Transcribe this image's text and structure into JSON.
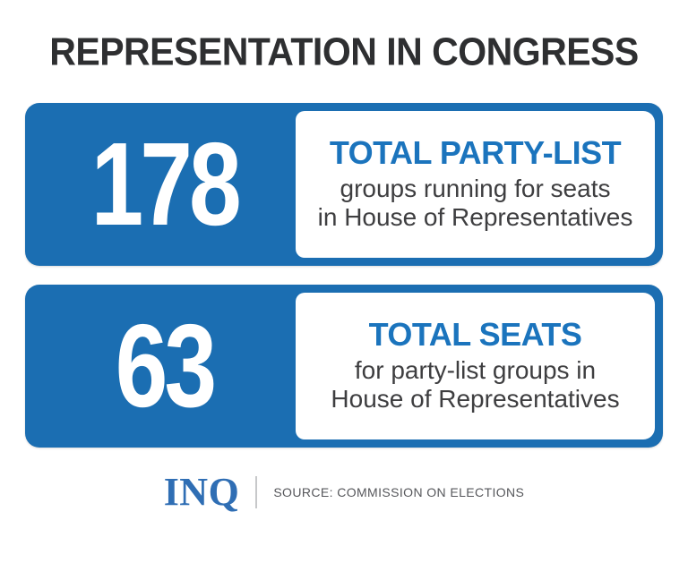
{
  "page": {
    "title": "REPRESENTATION IN CONGRESS"
  },
  "colors": {
    "title_dark": "#2e2f31",
    "card_blue": "#1b6eb2",
    "heading_blue": "#1b74bd",
    "body_gray": "#3e3e40",
    "logo_blue": "#2f6eb4",
    "divider_gray": "#c7c8ca",
    "source_gray": "#56575b"
  },
  "cards": [
    {
      "value": "178",
      "heading": "TOTAL PARTY-LIST",
      "line1": "groups running for seats",
      "line2": "in House of Representatives"
    },
    {
      "value": "63",
      "heading": "TOTAL SEATS",
      "line1": "for party-list groups in",
      "line2": "House of Representatives"
    }
  ],
  "footer": {
    "logo": "INQ",
    "source": "SOURCE: COMMISSION ON ELECTIONS"
  },
  "chart_data": {
    "type": "table",
    "title": "REPRESENTATION IN CONGRESS",
    "categories": [
      "Total party-list groups running for seats in House of Representatives",
      "Total seats for party-list groups in House of Representatives"
    ],
    "values": [
      178,
      63
    ],
    "source": "SOURCE: COMMISSION ON ELECTIONS"
  }
}
